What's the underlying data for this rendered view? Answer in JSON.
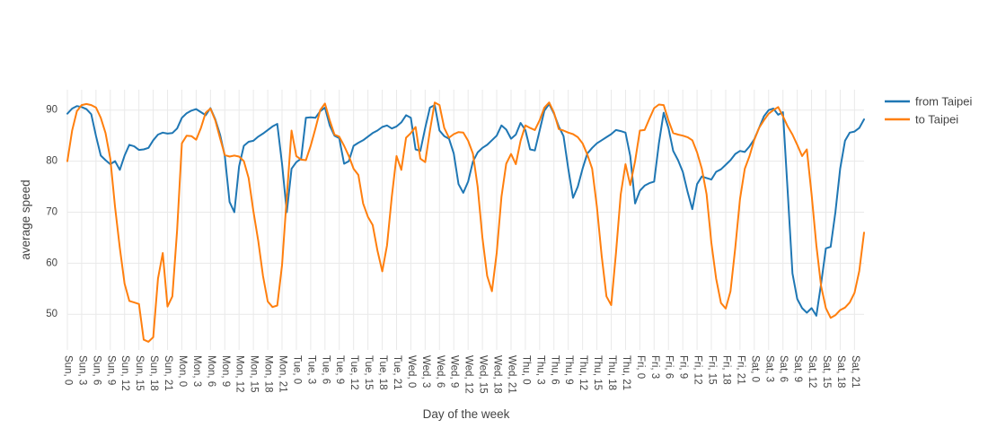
{
  "accent_colors": {
    "from_taipei": "#1f77b4",
    "to_taipei": "#ff7f0e",
    "grid": "#e9e9e9",
    "text": "#444444",
    "background": "#ffffff"
  },
  "axes": {
    "x_title": "Day of the week",
    "y_title": "average speed"
  },
  "legend": {
    "items": [
      {
        "label": "from Taipei",
        "color": "#1f77b4"
      },
      {
        "label": "to Taipei",
        "color": "#ff7f0e"
      }
    ]
  },
  "chart_data": {
    "type": "line",
    "title": "",
    "xlabel": "Day of the week",
    "ylabel": "average speed",
    "grid": true,
    "legend_position": "top-right",
    "ylim": [
      43,
      94
    ],
    "yticks": [
      50,
      60,
      70,
      80,
      90
    ],
    "x_hours_per_point": 1,
    "tick_every_hours": 3,
    "tick_labels": [
      "Sun, 0",
      "Sun, 3",
      "Sun, 6",
      "Sun, 9",
      "Sun, 12",
      "Sun, 15",
      "Sun, 18",
      "Sun, 21",
      "Mon, 0",
      "Mon, 3",
      "Mon, 6",
      "Mon, 9",
      "Mon, 12",
      "Mon, 15",
      "Mon, 18",
      "Mon, 21",
      "Tue, 0",
      "Tue, 3",
      "Tue, 6",
      "Tue, 9",
      "Tue, 12",
      "Tue, 15",
      "Tue, 18",
      "Tue, 21",
      "Wed, 0",
      "Wed, 3",
      "Wed, 6",
      "Wed, 9",
      "Wed, 12",
      "Wed, 15",
      "Wed, 18",
      "Wed, 21",
      "Thu, 0",
      "Thu, 3",
      "Thu, 6",
      "Thu, 9",
      "Thu, 12",
      "Thu, 15",
      "Thu, 18",
      "Thu, 21",
      "Fri, 0",
      "Fri, 3",
      "Fri, 6",
      "Fri, 9",
      "Fri, 12",
      "Fri, 15",
      "Fri, 18",
      "Fri, 21",
      "Sat, 0",
      "Sat, 3",
      "Sat, 6",
      "Sat, 9",
      "Sat, 12",
      "Sat, 15",
      "Sat, 18",
      "Sat, 21"
    ],
    "series": [
      {
        "name": "from Taipei",
        "color": "#1f77b4",
        "values": [
          89.3,
          90.3,
          90.8,
          90.6,
          90.2,
          89.2,
          84.9,
          81.1,
          80.2,
          79.4,
          80.0,
          78.3,
          81.1,
          83.2,
          82.9,
          82.2,
          82.3,
          82.6,
          84.1,
          85.2,
          85.6,
          85.4,
          85.5,
          86.4,
          88.5,
          89.4,
          89.9,
          90.2,
          89.6,
          89.0,
          90.4,
          88.2,
          85.2,
          81.0,
          72.0,
          70.0,
          79.0,
          83.0,
          83.8,
          84.0,
          84.8,
          85.4,
          86.1,
          86.8,
          87.3,
          79.5,
          70.0,
          78.5,
          79.8,
          80.5,
          88.5,
          88.6,
          88.5,
          89.8,
          90.5,
          87.0,
          85.0,
          84.5,
          79.5,
          80.0,
          83.0,
          83.6,
          84.1,
          84.8,
          85.5,
          86.0,
          86.7,
          87.0,
          86.4,
          86.8,
          87.6,
          89.0,
          88.5,
          82.3,
          82.0,
          86.5,
          90.5,
          91.0,
          86.0,
          84.9,
          84.4,
          81.5,
          75.5,
          73.8,
          76.0,
          79.9,
          81.7,
          82.6,
          83.2,
          84.1,
          85.0,
          87.0,
          86.2,
          84.4,
          85.2,
          87.5,
          86.1,
          82.3,
          82.1,
          86.0,
          89.9,
          91.2,
          89.3,
          86.8,
          84.9,
          78.5,
          72.8,
          75.0,
          78.5,
          81.5,
          82.6,
          83.5,
          84.1,
          84.7,
          85.3,
          86.1,
          85.9,
          85.6,
          81.0,
          71.7,
          74.2,
          75.2,
          75.7,
          76.0,
          83.5,
          89.5,
          86.5,
          82.0,
          80.2,
          77.9,
          74.0,
          70.6,
          75.5,
          77.0,
          76.7,
          76.4,
          77.9,
          78.4,
          79.3,
          80.2,
          81.4,
          82.0,
          81.8,
          82.9,
          84.3,
          86.5,
          88.8,
          90.0,
          90.3,
          89.1,
          89.6,
          74.0,
          58.0,
          53.0,
          51.2,
          50.3,
          51.2,
          49.7,
          56.0,
          62.9,
          63.2,
          70.0,
          78.5,
          84.0,
          85.6,
          85.8,
          86.5,
          88.2
        ]
      },
      {
        "name": "to Taipei",
        "color": "#ff7f0e",
        "values": [
          80.0,
          86.0,
          89.8,
          91.0,
          91.2,
          91.0,
          90.5,
          88.5,
          85.5,
          80.5,
          71.0,
          63.0,
          56.0,
          52.6,
          52.3,
          52.0,
          45.0,
          44.6,
          45.5,
          57.0,
          62.0,
          51.5,
          53.5,
          66.5,
          83.5,
          85.0,
          84.9,
          84.2,
          86.5,
          89.5,
          90.3,
          88.0,
          84.5,
          81.2,
          80.9,
          81.1,
          80.9,
          80.0,
          76.7,
          70.2,
          64.4,
          57.5,
          52.5,
          51.4,
          51.7,
          59.6,
          73.0,
          86.0,
          81.0,
          80.3,
          80.2,
          83.0,
          86.4,
          90.0,
          91.3,
          88.0,
          85.2,
          84.8,
          83.0,
          81.0,
          78.5,
          77.3,
          71.7,
          69.1,
          67.5,
          62.5,
          58.4,
          63.5,
          73.0,
          81.0,
          78.3,
          84.6,
          85.5,
          86.7,
          80.5,
          79.8,
          86.0,
          91.5,
          91.0,
          86.5,
          84.6,
          85.3,
          85.7,
          85.6,
          84.0,
          81.5,
          75.0,
          65.0,
          57.5,
          54.5,
          62.0,
          73.0,
          79.5,
          81.4,
          79.4,
          84.0,
          87.0,
          86.5,
          86.1,
          88.0,
          90.5,
          91.5,
          89.5,
          86.3,
          86.0,
          85.6,
          85.3,
          84.7,
          83.5,
          81.3,
          78.5,
          71.0,
          61.4,
          53.5,
          51.8,
          62.0,
          73.5,
          79.4,
          75.3,
          80.0,
          86.0,
          86.1,
          88.3,
          90.4,
          91.1,
          91.0,
          88.0,
          85.5,
          85.2,
          85.0,
          84.7,
          84.1,
          81.7,
          78.5,
          73.5,
          64.0,
          57.0,
          52.2,
          51.1,
          54.5,
          63.0,
          72.6,
          78.5,
          81.0,
          84.2,
          86.5,
          88.0,
          89.3,
          90.0,
          90.6,
          88.8,
          86.8,
          85.2,
          83.2,
          81.0,
          82.3,
          73.5,
          63.5,
          55.5,
          51.2,
          49.3,
          49.8,
          50.8,
          51.3,
          52.3,
          54.2,
          58.5,
          66.0
        ]
      }
    ]
  }
}
